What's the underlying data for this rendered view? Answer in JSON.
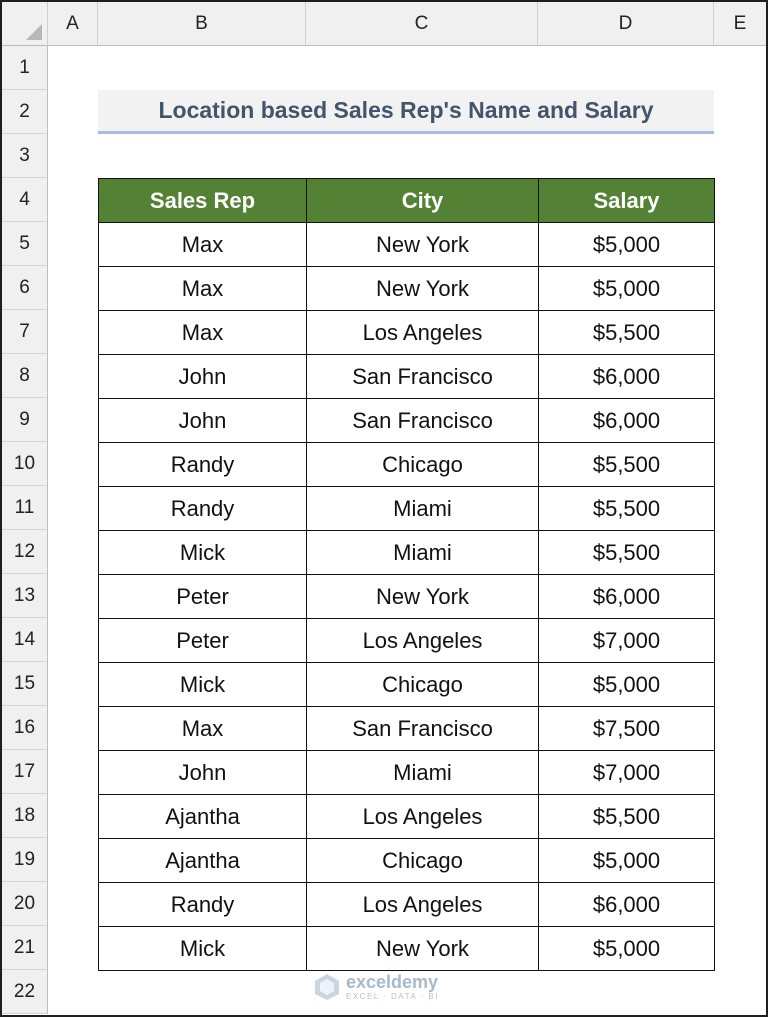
{
  "sheet": {
    "columns": [
      "A",
      "B",
      "C",
      "D",
      "E"
    ],
    "rows": [
      "1",
      "2",
      "3",
      "4",
      "5",
      "6",
      "7",
      "8",
      "9",
      "10",
      "11",
      "12",
      "13",
      "14",
      "15",
      "16",
      "17",
      "18",
      "19",
      "20",
      "21",
      "22"
    ]
  },
  "title": "Location based Sales Rep's Name and Salary",
  "table": {
    "headers": [
      "Sales Rep",
      "City",
      "Salary"
    ],
    "rows": [
      [
        "Max",
        "New York",
        "$5,000"
      ],
      [
        "Max",
        "New York",
        "$5,000"
      ],
      [
        "Max",
        "Los Angeles",
        "$5,500"
      ],
      [
        "John",
        "San Francisco",
        "$6,000"
      ],
      [
        "John",
        "San Francisco",
        "$6,000"
      ],
      [
        "Randy",
        "Chicago",
        "$5,500"
      ],
      [
        "Randy",
        "Miami",
        "$5,500"
      ],
      [
        "Mick",
        "Miami",
        "$5,500"
      ],
      [
        "Peter",
        "New York",
        "$6,000"
      ],
      [
        "Peter",
        "Los Angeles",
        "$7,000"
      ],
      [
        "Mick",
        "Chicago",
        "$5,000"
      ],
      [
        "Max",
        "San Francisco",
        "$7,500"
      ],
      [
        "John",
        "Miami",
        "$7,000"
      ],
      [
        "Ajantha",
        "Los Angeles",
        "$5,500"
      ],
      [
        "Ajantha",
        "Chicago",
        "$5,000"
      ],
      [
        "Randy",
        "Los Angeles",
        "$6,000"
      ],
      [
        "Mick",
        "New York",
        "$5,000"
      ]
    ]
  },
  "watermark": {
    "name": "exceldemy",
    "tagline": "EXCEL · DATA · BI"
  },
  "colors": {
    "header_fill": "#548235",
    "title_fill": "#f2f2f2",
    "title_text": "#44546a",
    "title_underline": "#a9bce0"
  }
}
